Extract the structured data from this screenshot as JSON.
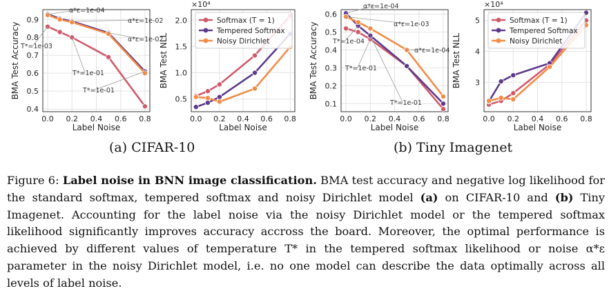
{
  "colors": {
    "softmax": "#cf5a6b",
    "tempered": "#5b3a8c",
    "dirichlet": "#f28b47",
    "grid": "#e3e3e3",
    "axis": "#333333",
    "annot": "#999999"
  },
  "subcaptions": {
    "a": "(a) CIFAR-10",
    "b": "(b) Tiny Imagenet"
  },
  "caption": {
    "fig_label": "Figure 6:",
    "bold_title": "Label noise in BNN image classification.",
    "t1": "BMA test accuracy and negative log likelihood for the standard softmax, tempered softmax and noisy Dirichlet model",
    "a": "(a)",
    "t2": "on CIFAR-10 and",
    "b": "(b)",
    "t3": "Tiny Imagenet. Accounting for the label noise via the noisy Dirichlet model or the tempered softmax likelihood significantly improves accuracy accross the board. Moreover, the optimal performance is achieved by different values of temperature T* in the tempered softmax likelihood or noise α*ε parameter in the noisy Dirichlet model, i.e. no one model can describe the data optimally across all levels of label noise."
  },
  "chart_data": [
    {
      "type": "line",
      "panel": "CIFAR-10 accuracy",
      "xlabel": "Label Noise",
      "ylabel": "BMA Test Accuracy",
      "x": [
        0.0,
        0.1,
        0.2,
        0.5,
        0.8
      ],
      "xticks": [
        "0.0",
        "0.2",
        "0.4",
        "0.6",
        "0.8"
      ],
      "xtick_values": [
        0.0,
        0.2,
        0.4,
        0.6,
        0.8
      ],
      "yticks": [
        "0.4",
        "0.5",
        "0.6",
        "0.7",
        "0.8",
        "0.9"
      ],
      "ytick_values": [
        0.4,
        0.5,
        0.6,
        0.7,
        0.8,
        0.9
      ],
      "xlim": [
        -0.04,
        0.84
      ],
      "ylim": [
        0.385,
        0.955
      ],
      "series": [
        {
          "name": "Softmax (T = 1)",
          "key": "softmax",
          "values": [
            0.86,
            0.83,
            0.8,
            0.69,
            0.415
          ]
        },
        {
          "name": "Tempered Softmax",
          "key": "tempered",
          "values": [
            0.93,
            0.905,
            0.89,
            0.825,
            0.61
          ]
        },
        {
          "name": "Noisy Dirichlet",
          "key": "dirichlet",
          "values": [
            0.925,
            0.9,
            0.885,
            0.82,
            0.6
          ]
        }
      ],
      "annotations": [
        "α*ε=1e-04",
        "α*ε=1e-02",
        "T*=1e-03",
        "α*ε=1e-02",
        "T*=1e-01",
        "T*=1e-01"
      ]
    },
    {
      "type": "line",
      "panel": "CIFAR-10 NLL",
      "xlabel": "Label Noise",
      "ylabel": "BMA Test NLL",
      "multiplier": "×10⁴",
      "x": [
        0.0,
        0.1,
        0.2,
        0.5,
        0.8
      ],
      "xticks": [
        "0.0",
        "0.2",
        "0.4",
        "0.6",
        "0.8"
      ],
      "xtick_values": [
        0.0,
        0.2,
        0.4,
        0.6,
        0.8
      ],
      "yticks": [
        "0.5",
        "1.0",
        "1.5",
        "2.0"
      ],
      "ytick_values": [
        0.5,
        1.0,
        1.5,
        2.0
      ],
      "xlim": [
        -0.04,
        0.84
      ],
      "ylim": [
        0.26,
        2.2
      ],
      "series": [
        {
          "name": "Softmax (T = 1)",
          "key": "softmax",
          "values": [
            0.56,
            0.65,
            0.78,
            1.33,
            2.08
          ]
        },
        {
          "name": "Tempered Softmax",
          "key": "tempered",
          "values": [
            0.35,
            0.43,
            0.54,
            1.0,
            1.74
          ]
        },
        {
          "name": "Noisy Dirichlet",
          "key": "dirichlet",
          "values": [
            0.54,
            0.52,
            0.45,
            0.7,
            1.49
          ]
        }
      ],
      "legend": "top-left"
    },
    {
      "type": "line",
      "panel": "Tiny Imagenet accuracy",
      "xlabel": "Label Noise",
      "ylabel": "BMA Test Accuracy",
      "x": [
        0.0,
        0.1,
        0.2,
        0.5,
        0.8
      ],
      "xticks": [
        "0.0",
        "0.2",
        "0.4",
        "0.6",
        "0.8"
      ],
      "xtick_values": [
        0.0,
        0.2,
        0.4,
        0.6,
        0.8
      ],
      "yticks": [
        "0.1",
        "0.2",
        "0.3",
        "0.4",
        "0.5",
        "0.6"
      ],
      "ytick_values": [
        0.1,
        0.2,
        0.3,
        0.4,
        0.5,
        0.6
      ],
      "xlim": [
        -0.04,
        0.84
      ],
      "ylim": [
        0.055,
        0.625
      ],
      "series": [
        {
          "name": "Softmax (T = 1)",
          "key": "softmax",
          "values": [
            0.52,
            0.5,
            0.46,
            0.31,
            0.07
          ]
        },
        {
          "name": "Tempered Softmax",
          "key": "tempered",
          "values": [
            0.605,
            0.535,
            0.48,
            0.31,
            0.1
          ]
        },
        {
          "name": "Noisy Dirichlet",
          "key": "dirichlet",
          "values": [
            0.585,
            0.555,
            0.52,
            0.4,
            0.14
          ]
        }
      ],
      "annotations": [
        "α*ε=1e-04",
        "α*ε=1e-03",
        "T*=1e-04",
        "α*ε=1e-04",
        "T*=1e-01",
        "T*=1e-01"
      ]
    },
    {
      "type": "line",
      "panel": "Tiny Imagenet NLL",
      "xlabel": "Label Noise",
      "ylabel": "BMA Test NLL",
      "multiplier": "×10⁴",
      "x": [
        0.0,
        0.1,
        0.2,
        0.5,
        0.8
      ],
      "xticks": [
        "0.0",
        "0.2",
        "0.4",
        "0.6",
        "0.8"
      ],
      "xtick_values": [
        0.0,
        0.2,
        0.4,
        0.6,
        0.8
      ],
      "yticks": [
        "3",
        "4",
        "5"
      ],
      "ytick_values": [
        3,
        4,
        5
      ],
      "xlim": [
        -0.04,
        0.84
      ],
      "ylim": [
        2.05,
        5.35
      ],
      "series": [
        {
          "name": "Softmax (T = 1)",
          "key": "softmax",
          "values": [
            2.28,
            2.4,
            2.65,
            3.58,
            5.0
          ]
        },
        {
          "name": "Tempered Softmax",
          "key": "tempered",
          "values": [
            2.38,
            3.03,
            3.23,
            3.62,
            5.25
          ]
        },
        {
          "name": "Noisy Dirichlet",
          "key": "dirichlet",
          "values": [
            2.4,
            2.5,
            2.45,
            3.5,
            4.85
          ]
        }
      ],
      "legend": "top-left"
    }
  ]
}
